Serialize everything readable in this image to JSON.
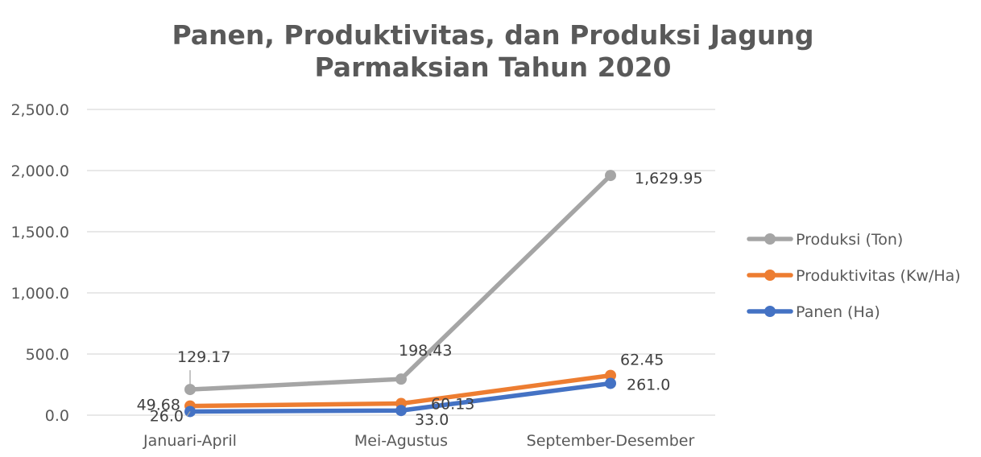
{
  "chart_data": {
    "type": "line",
    "title_lines": [
      "Panen, Produktivitas, dan Produksi Jagung",
      "Parmaksian Tahun 2020"
    ],
    "categories": [
      "Januari-April",
      "Mei-Agustus",
      "September-Desember"
    ],
    "ylim": [
      0,
      2500
    ],
    "yticks": [
      "0.0",
      "500.0",
      "1,000.0",
      "1,500.0",
      "2,000.0",
      "2,500.0"
    ],
    "grid": true,
    "legend_position": "right",
    "series": [
      {
        "name": "Produksi (Ton)",
        "color": "#a5a5a5",
        "values": [
          210,
          295,
          1960
        ],
        "labels": [
          "129.17",
          "198.43",
          "1,629.95"
        ]
      },
      {
        "name": "Produktivitas (Kw/Ha)",
        "color": "#ed7d31",
        "values": [
          75,
          95,
          325
        ],
        "labels": [
          "49.68",
          "60.13",
          "62.45"
        ]
      },
      {
        "name": "Panen (Ha)",
        "color": "#4472c4",
        "values": [
          30,
          38,
          260
        ],
        "labels": [
          "26.0",
          "33.0",
          "261.0"
        ]
      }
    ]
  }
}
